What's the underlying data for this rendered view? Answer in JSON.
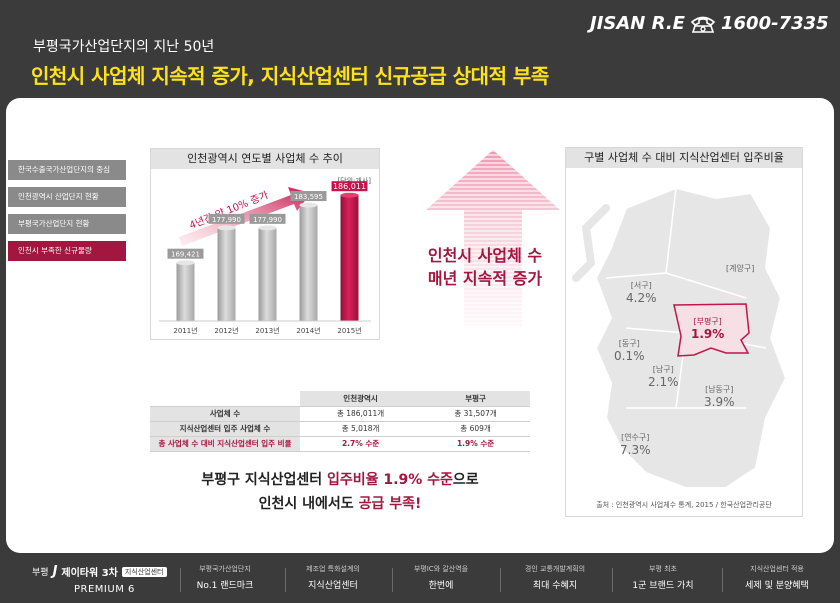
{
  "header": {
    "subtitle": "부평국가산업단지의 지난 50년",
    "title": "인천시 사업체 지속적 증가, 지식산업센터 신규공급 상대적 부족",
    "brand": "JISAN R.E",
    "phone": "1600-7335"
  },
  "tabs": [
    {
      "label": "한국수출국가산업단지의 중심"
    },
    {
      "label": "인천광역시 산업단지 현황"
    },
    {
      "label": "부평국가산업단지 현황"
    },
    {
      "label": "인천시 부족한 신규물량"
    }
  ],
  "chart_data": {
    "type": "bar",
    "title": "인천광역시 연도별 사업체 수 추이",
    "unit": "[단위:개사]",
    "categories": [
      "2011년",
      "2012년",
      "2013년",
      "2014년",
      "2015년"
    ],
    "values": [
      169421,
      177990,
      177990,
      183595,
      186011
    ],
    "value_labels": [
      "169,421",
      "177,990",
      "177,990",
      "183,595",
      "186,011"
    ],
    "highlight_index": 4,
    "annotation": "4년간 약 10% 증가",
    "colors": {
      "bar": "#bdbdbd",
      "highlight": "#c4144b"
    }
  },
  "center": {
    "line1": "인천시 사업체 수",
    "line2": "매년 지속적 증가"
  },
  "map": {
    "title": "구별 사업체 수 대비 지식산업센터 입주비율",
    "source": "출처 : 인천광역시 사업체수 통계, 2015 / 한국산업관리공단",
    "regions": [
      {
        "name": "[계양구]",
        "value": ""
      },
      {
        "name": "[서구]",
        "value": "4.2%"
      },
      {
        "name": "[부평구]",
        "value": "1.9%"
      },
      {
        "name": "[동구]",
        "value": "0.1%"
      },
      {
        "name": "[남구]",
        "value": "2.1%"
      },
      {
        "name": "[남동구]",
        "value": "3.9%"
      },
      {
        "name": "[연수구]",
        "value": "7.3%"
      }
    ]
  },
  "table": {
    "headers": [
      "",
      "인천광역시",
      "부평구"
    ],
    "rows": [
      [
        "사업체 수",
        "총 186,011개",
        "총 31,507개"
      ],
      [
        "지식산업센터 입주 사업체 수",
        "총 5,018개",
        "총 609개"
      ],
      [
        "총 사업체 수 대비 지식산업센터 입주 비율",
        "2.7% 수준",
        "1.9% 수준"
      ]
    ]
  },
  "conclusion": {
    "l1a": "부평구 지식산업센터 ",
    "l1b": "입주비율 1.9% 수준",
    "l1c": "으로",
    "l2a": "인천시 내에서도 ",
    "l2b": "공급 부족!"
  },
  "footer": {
    "logo_prefix": "부평",
    "logo_name": "제이타워 3차",
    "logo_badge": "지식산업센터",
    "premium": "PREMIUM 6",
    "items": [
      {
        "top": "부평국가산업단지",
        "bottom": "No.1 랜드마크"
      },
      {
        "top": "제조업 특화설계의",
        "bottom": "지식산업센터"
      },
      {
        "top": "부평IC와 갈산역을",
        "bottom": "한번에"
      },
      {
        "top": "경인 교통개발계획의",
        "bottom": "최대 수혜지"
      },
      {
        "top": "부평 최초",
        "bottom": "1군 브랜드 가치"
      },
      {
        "top": "지식산업센터 적용",
        "bottom": "세제 및 분양혜택"
      }
    ]
  }
}
